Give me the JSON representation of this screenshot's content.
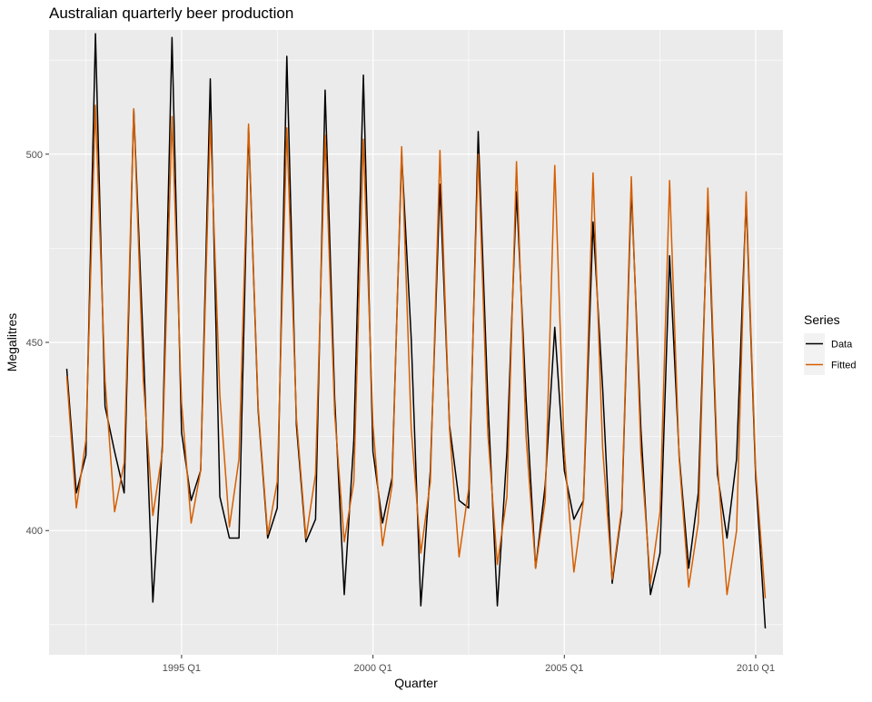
{
  "chart_data": {
    "type": "line",
    "title": "Australian quarterly beer production",
    "xlabel": "Quarter",
    "ylabel": "Megalitres",
    "x_start": "1992 Q1",
    "x_ticks": [
      "1995 Q1",
      "2000 Q1",
      "2005 Q1",
      "2010 Q1"
    ],
    "y_ticks": [
      400,
      450,
      500
    ],
    "ylim": [
      367,
      533
    ],
    "grid": true,
    "legend": {
      "title": "Series",
      "position": "right"
    },
    "series": [
      {
        "name": "Data",
        "color": "#000000",
        "values": [
          443,
          410,
          420,
          532,
          433,
          421,
          410,
          512,
          449,
          381,
          423,
          531,
          426,
          408,
          416,
          520,
          409,
          398,
          398,
          507,
          432,
          398,
          406,
          526,
          428,
          397,
          403,
          517,
          435,
          383,
          424,
          521,
          421,
          402,
          414,
          500,
          451,
          380,
          416,
          492,
          428,
          408,
          406,
          506,
          435,
          380,
          421,
          490,
          435,
          390,
          412,
          454,
          416,
          403,
          408,
          482,
          438,
          386,
          405,
          491,
          427,
          383,
          394,
          473,
          420,
          390,
          410,
          488,
          415,
          398,
          419,
          488,
          414,
          374
        ]
      },
      {
        "name": "Fitted",
        "color": "#D55E00",
        "values": [
          441,
          406,
          424,
          513,
          440,
          405,
          418,
          512,
          440,
          404,
          421,
          510,
          434,
          402,
          416,
          509,
          436,
          401,
          419,
          508,
          433,
          399,
          413,
          507,
          430,
          398,
          415,
          505,
          431,
          397,
          413,
          504,
          428,
          396,
          412,
          502,
          427,
          394,
          413,
          501,
          427,
          393,
          411,
          500,
          426,
          391,
          409,
          498,
          425,
          390,
          408,
          497,
          421,
          389,
          408,
          495,
          422,
          387,
          406,
          494,
          421,
          386,
          405,
          493,
          419,
          385,
          402,
          491,
          418,
          383,
          400,
          490,
          416,
          382
        ]
      }
    ]
  }
}
